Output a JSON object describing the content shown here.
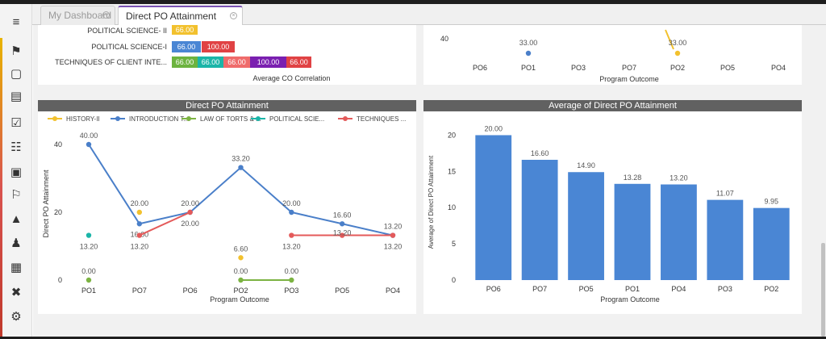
{
  "tabs": [
    {
      "label": "My Dashboard",
      "active": false
    },
    {
      "label": "Direct PO Attainment Report",
      "active": true
    }
  ],
  "sidebar_icons": [
    "menu-icon",
    "megaphone-icon",
    "id-card-icon",
    "notebook-icon",
    "checklist-icon",
    "open-book-icon",
    "cash-icon",
    "flag-icon",
    "graduate-icon",
    "people-icon",
    "briefcase-icon",
    "tools-icon",
    "settings-graduate-icon"
  ],
  "co_panel": {
    "rows": [
      {
        "label": "POLITICAL SCIENCE- II",
        "cells": [
          {
            "value": "66.00",
            "color": "#f2c12e"
          }
        ]
      },
      {
        "label": "POLITICAL SCIENCE-I",
        "cells": [
          {
            "value": "66.00",
            "color": "#4a86d4"
          },
          {
            "value": "100.00",
            "color": "#e04244"
          }
        ]
      },
      {
        "label": "TECHNIQUES OF CLIENT INTE...",
        "cells": [
          {
            "value": "66.00",
            "color": "#6cb33f"
          },
          {
            "value": "66.00",
            "color": "#1bb5a8"
          },
          {
            "value": "66.00",
            "color": "#ef6b6b"
          },
          {
            "value": "100.00",
            "color": "#7a1fb0"
          },
          {
            "value": "66.00",
            "color": "#e04244"
          }
        ]
      }
    ],
    "xlabel": "Average CO Correlation"
  },
  "po_top_panel": {
    "ytick": "40",
    "categories": [
      "PO6",
      "PO1",
      "PO3",
      "PO7",
      "PO2",
      "PO5",
      "PO4"
    ],
    "labels": [
      {
        "cat": "PO1",
        "text": "33.00"
      },
      {
        "cat": "PO2",
        "text": "33.00"
      }
    ],
    "xlabel": "Program Outcome"
  },
  "line_panel": {
    "title": "Direct PO Attainment",
    "legend": [
      {
        "label": "HISTORY-II",
        "color": "#f2c12e"
      },
      {
        "label": "INTRODUCTION T...",
        "color": "#4a7fc9"
      },
      {
        "label": "LAW OF TORTS & ...",
        "color": "#7cb342"
      },
      {
        "label": "POLITICAL SCIE...",
        "color": "#1bb5a8"
      },
      {
        "label": "TECHNIQUES ...",
        "color": "#e45a5a"
      }
    ],
    "chart_data": {
      "type": "line",
      "categories": [
        "PO1",
        "PO7",
        "PO6",
        "PO2",
        "PO3",
        "PO5",
        "PO4"
      ],
      "xlabel": "Program Outcome",
      "ylabel": "Direct PO Attainment",
      "ylim": [
        0,
        45
      ],
      "yticks": [
        "0",
        "20",
        "40"
      ],
      "series": [
        {
          "name": "HISTORY-II",
          "color": "#f2c12e",
          "points": [
            {
              "x": "PO7",
              "y": 20.0,
              "label": "20.00"
            },
            {
              "x": "PO2",
              "y": 6.6,
              "label": "6.60"
            }
          ]
        },
        {
          "name": "INTRODUCTION T...",
          "color": "#4a7fc9",
          "points": [
            {
              "x": "PO1",
              "y": 40.0,
              "label": "40.00"
            },
            {
              "x": "PO7",
              "y": 16.6,
              "label": "16.60"
            },
            {
              "x": "PO6",
              "y": 20.0,
              "label": "20.00"
            },
            {
              "x": "PO2",
              "y": 33.2,
              "label": "33.20"
            },
            {
              "x": "PO3",
              "y": 20.0,
              "label": "20.00"
            },
            {
              "x": "PO5",
              "y": 16.6,
              "label": "16.60"
            },
            {
              "x": "PO4",
              "y": 13.2,
              "label": "13.20"
            }
          ]
        },
        {
          "name": "LAW OF TORTS & ...",
          "color": "#7cb342",
          "points": [
            {
              "x": "PO1",
              "y": 0.0,
              "label": "0.00"
            },
            {
              "x": "PO2",
              "y": 0.0,
              "label": "0.00"
            },
            {
              "x": "PO3",
              "y": 0.0,
              "label": "0.00"
            }
          ]
        },
        {
          "name": "POLITICAL SCIE...",
          "color": "#1bb5a8",
          "points": [
            {
              "x": "PO1",
              "y": 13.2,
              "label": "13.20"
            }
          ]
        },
        {
          "name": "TECHNIQUES ...",
          "color": "#e45a5a",
          "points": [
            {
              "x": "PO7",
              "y": 13.2,
              "label": "13.20"
            },
            {
              "x": "PO6",
              "y": 20.0,
              "label": "20.00"
            },
            {
              "x": "PO3",
              "y": 13.2,
              "label": "13.20"
            },
            {
              "x": "PO5",
              "y": 13.2,
              "label": "13.20"
            },
            {
              "x": "PO4",
              "y": 13.2,
              "label": "13.20"
            }
          ]
        }
      ]
    }
  },
  "bar_panel": {
    "title": "Average of Direct PO Attainment",
    "chart_data": {
      "type": "bar",
      "categories": [
        "PO6",
        "PO7",
        "PO5",
        "PO1",
        "PO4",
        "PO3",
        "PO2"
      ],
      "values": [
        20.0,
        16.6,
        14.9,
        13.28,
        13.2,
        11.07,
        9.95
      ],
      "labels": [
        "20.00",
        "16.60",
        "14.90",
        "13.28",
        "13.20",
        "11.07",
        "9.95"
      ],
      "xlabel": "Program Outcome",
      "ylabel": "Average of Direct PO Attainment",
      "ylim": [
        0,
        21.5
      ],
      "yticks": [
        "0",
        "5",
        "10",
        "15",
        "20"
      ],
      "color": "#4a86d4"
    }
  }
}
